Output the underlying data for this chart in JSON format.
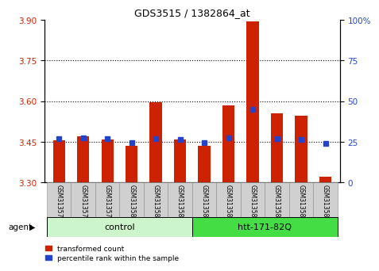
{
  "title": "GDS3515 / 1382864_at",
  "samples": [
    "GSM313577",
    "GSM313578",
    "GSM313579",
    "GSM313580",
    "GSM313581",
    "GSM313582",
    "GSM313583",
    "GSM313584",
    "GSM313585",
    "GSM313586",
    "GSM313587",
    "GSM313588"
  ],
  "red_values": [
    3.455,
    3.47,
    3.46,
    3.435,
    3.595,
    3.46,
    3.435,
    3.585,
    3.895,
    3.555,
    3.545,
    3.32
  ],
  "blue_values": [
    3.462,
    3.465,
    3.462,
    3.448,
    3.462,
    3.458,
    3.448,
    3.465,
    3.57,
    3.462,
    3.46,
    3.445
  ],
  "ylim_left": [
    3.3,
    3.9
  ],
  "ylim_right": [
    0,
    100
  ],
  "yticks_left": [
    3.3,
    3.45,
    3.6,
    3.75,
    3.9
  ],
  "yticks_right": [
    0,
    25,
    50,
    75,
    100
  ],
  "bar_bottom": 3.3,
  "red_color": "#cc2200",
  "blue_color": "#2244cc",
  "bg_plot": "#ffffff",
  "group_control_color": "#ccf5cc",
  "group_htt_color": "#44dd44",
  "agent_label": "agent",
  "legend_red": "transformed count",
  "legend_blue": "percentile rank within the sample"
}
